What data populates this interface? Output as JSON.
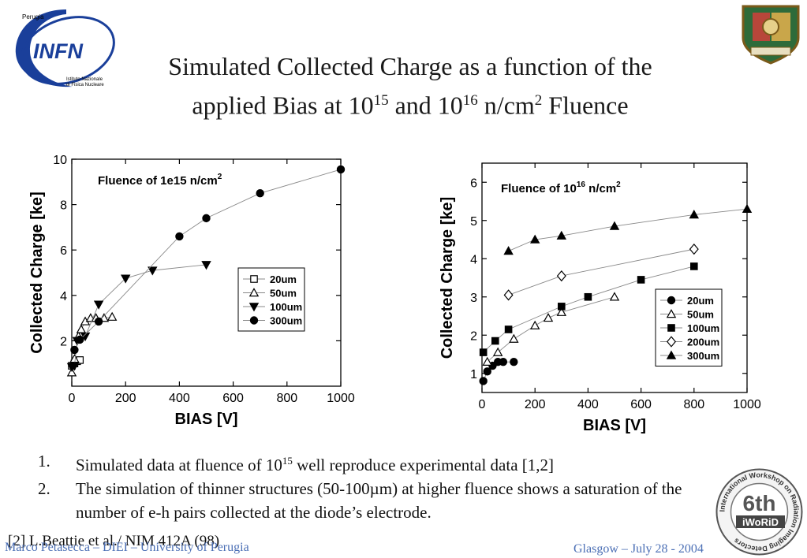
{
  "slide": {
    "title_line1": "Simulated Collected Charge as a function of the",
    "title_line2_a": "applied Bias at 10",
    "title_sup1": "15",
    "title_line2_b": " and 10",
    "title_sup2": "16",
    "title_line2_c": " n/cm",
    "title_sup3": "2",
    "title_line2_d": " Fluence"
  },
  "logos": {
    "infn_city": "Perugia",
    "infn_name": "INFN",
    "infn_sub1": "Istituto Nazionale",
    "infn_sub2": "di Fisica Nucleare",
    "seal_text": "6th",
    "seal_sub": "iWoRiD",
    "seal_ring": "International Workshop on Radiation Imaging Detectors"
  },
  "notes": [
    {
      "num": "1.",
      "text_a": "Simulated data at fluence of 10",
      "sup": "15",
      "text_b": " well reproduce experimental data [1,2]"
    },
    {
      "num": "2.",
      "text_a": "The simulation of thinner structures (50-100µm) at higher fluence shows a saturation of the number of e-h pairs collected at the diode’s electrode.",
      "sup": "",
      "text_b": ""
    }
  ],
  "reference": "[2] L.Beattie et al./ NIM 412A (98)",
  "footer": {
    "left": "Marco Petasecca – DIEI – University of Perugia",
    "right": "Glasgow – July 28 - 2004"
  },
  "chart_data": [
    {
      "type": "scatter",
      "annotation": "Fluence of 1e15 n/cm",
      "annotation_sup": "2",
      "xlabel": "BIAS [V]",
      "ylabel": "Collected Charge [ke]",
      "xlim": [
        0,
        1000
      ],
      "ylim": [
        0,
        10
      ],
      "xticks": [
        0,
        200,
        400,
        600,
        800,
        1000
      ],
      "yticks": [
        2,
        4,
        6,
        8,
        10
      ],
      "grid": false,
      "legend_position": "center-right",
      "series": [
        {
          "name": "20um",
          "marker": "square-open",
          "points": [
            [
              0,
              0.9
            ],
            [
              10,
              1.0
            ],
            [
              20,
              1.1
            ],
            [
              30,
              1.15
            ]
          ]
        },
        {
          "name": "50um",
          "marker": "triangle-open",
          "points": [
            [
              0,
              0.6
            ],
            [
              10,
              1.2
            ],
            [
              25,
              2.2
            ],
            [
              35,
              2.5
            ],
            [
              50,
              2.85
            ],
            [
              70,
              3.0
            ],
            [
              90,
              3.0
            ],
            [
              120,
              3.0
            ],
            [
              150,
              3.05
            ]
          ]
        },
        {
          "name": "100um",
          "marker": "triangle-down-filled",
          "points": [
            [
              0,
              0.85
            ],
            [
              10,
              0.9
            ],
            [
              20,
              2.0
            ],
            [
              50,
              2.2
            ],
            [
              100,
              3.6
            ],
            [
              200,
              4.75
            ],
            [
              300,
              5.1
            ],
            [
              500,
              5.35
            ]
          ]
        },
        {
          "name": "300um",
          "marker": "circle-filled",
          "points": [
            [
              10,
              1.6
            ],
            [
              30,
              2.05
            ],
            [
              100,
              2.85
            ],
            [
              400,
              6.6
            ],
            [
              500,
              7.4
            ],
            [
              700,
              8.5
            ],
            [
              1000,
              9.55
            ]
          ]
        }
      ]
    },
    {
      "type": "scatter",
      "annotation": "Fluence of 10",
      "annotation_sup": "16",
      "annotation_tail": " n/cm",
      "annotation_sup2": "2",
      "xlabel": "BIAS [V]",
      "ylabel": "Collected Charge [ke]",
      "xlim": [
        0,
        1000
      ],
      "ylim": [
        0.5,
        6.5
      ],
      "xticks": [
        0,
        200,
        400,
        600,
        800,
        1000
      ],
      "yticks": [
        1,
        2,
        3,
        4,
        5,
        6
      ],
      "grid": false,
      "legend_position": "bottom-right",
      "series": [
        {
          "name": "20um",
          "marker": "circle-filled",
          "points": [
            [
              5,
              0.8
            ],
            [
              20,
              1.05
            ],
            [
              40,
              1.2
            ],
            [
              60,
              1.3
            ],
            [
              80,
              1.3
            ],
            [
              120,
              1.3
            ]
          ]
        },
        {
          "name": "50um",
          "marker": "triangle-open",
          "points": [
            [
              20,
              1.3
            ],
            [
              60,
              1.55
            ],
            [
              120,
              1.9
            ],
            [
              200,
              2.25
            ],
            [
              250,
              2.45
            ],
            [
              300,
              2.6
            ],
            [
              500,
              3.0
            ]
          ]
        },
        {
          "name": "100um",
          "marker": "square-filled",
          "points": [
            [
              5,
              1.55
            ],
            [
              50,
              1.85
            ],
            [
              100,
              2.15
            ],
            [
              300,
              2.75
            ],
            [
              400,
              3.0
            ],
            [
              600,
              3.45
            ],
            [
              800,
              3.8
            ]
          ]
        },
        {
          "name": "200um",
          "marker": "diamond-open",
          "points": [
            [
              100,
              3.05
            ],
            [
              300,
              3.55
            ],
            [
              800,
              4.25
            ]
          ]
        },
        {
          "name": "300um",
          "marker": "triangle-filled",
          "points": [
            [
              100,
              4.2
            ],
            [
              200,
              4.5
            ],
            [
              300,
              4.6
            ],
            [
              500,
              4.85
            ],
            [
              800,
              5.15
            ],
            [
              1000,
              5.3
            ]
          ]
        }
      ]
    }
  ]
}
